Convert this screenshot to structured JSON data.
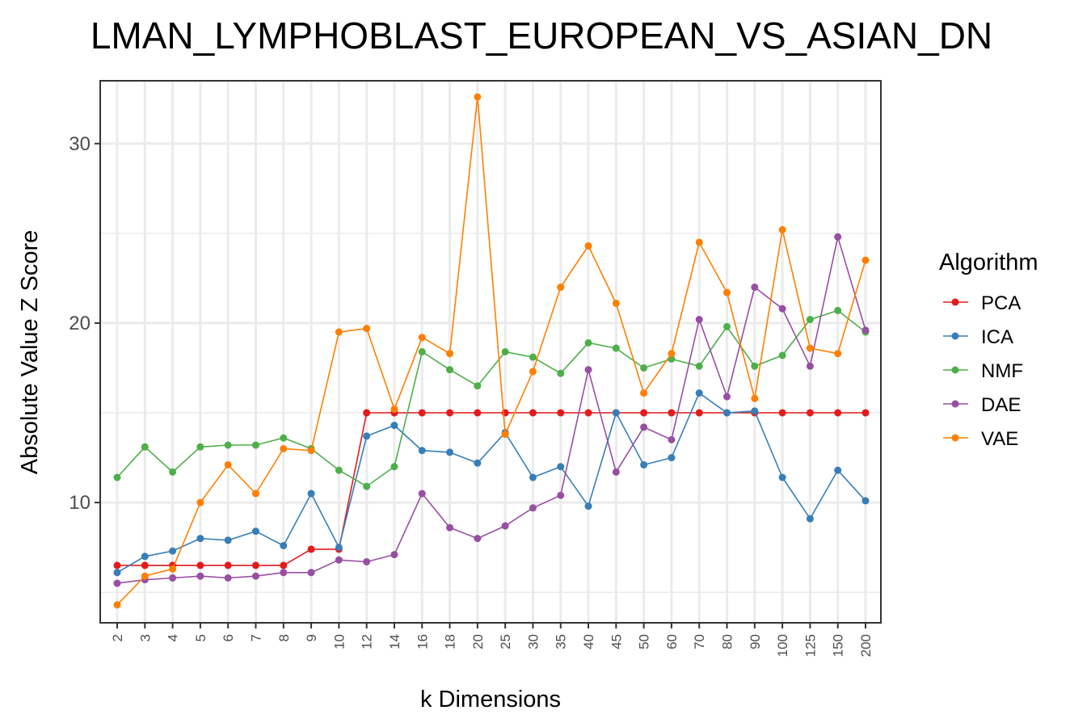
{
  "chart_data": {
    "type": "line",
    "title": "LMAN_LYMPHOBLAST_EUROPEAN_VS_ASIAN_DN",
    "xlabel": "k Dimensions",
    "ylabel": "Absolute Value Z Score",
    "categories": [
      "2",
      "3",
      "4",
      "5",
      "6",
      "7",
      "8",
      "9",
      "10",
      "12",
      "14",
      "16",
      "18",
      "20",
      "25",
      "30",
      "35",
      "40",
      "45",
      "50",
      "60",
      "70",
      "80",
      "90",
      "100",
      "125",
      "150",
      "200"
    ],
    "yticks": [
      10,
      20,
      30
    ],
    "ylim": [
      3.3,
      33.5
    ],
    "grid": true,
    "legend_title": "Algorithm",
    "legend_position": "right",
    "series": [
      {
        "name": "PCA",
        "color": "#e41a1c",
        "values": [
          6.5,
          6.5,
          6.5,
          6.5,
          6.5,
          6.5,
          6.5,
          7.4,
          7.4,
          15.0,
          15.0,
          15.0,
          15.0,
          15.0,
          15.0,
          15.0,
          15.0,
          15.0,
          15.0,
          15.0,
          15.0,
          15.0,
          15.0,
          15.0,
          15.0,
          15.0,
          15.0,
          15.0
        ]
      },
      {
        "name": "ICA",
        "color": "#377eb8",
        "values": [
          6.1,
          7.0,
          7.3,
          8.0,
          7.9,
          8.4,
          7.6,
          10.5,
          7.5,
          13.7,
          14.3,
          12.9,
          12.8,
          12.2,
          13.9,
          11.4,
          12.0,
          9.8,
          15.0,
          12.1,
          12.5,
          16.1,
          15.0,
          15.1,
          11.4,
          9.1,
          11.8,
          10.1
        ]
      },
      {
        "name": "NMF",
        "color": "#4daf4a",
        "values": [
          11.4,
          13.1,
          11.7,
          13.1,
          13.2,
          13.2,
          13.6,
          13.0,
          11.8,
          10.9,
          12.0,
          18.4,
          17.4,
          16.5,
          18.4,
          18.1,
          17.2,
          18.9,
          18.6,
          17.5,
          18.0,
          17.6,
          19.8,
          17.6,
          18.2,
          20.2,
          20.7,
          19.5
        ]
      },
      {
        "name": "DAE",
        "color": "#984ea3",
        "values": [
          5.5,
          5.7,
          5.8,
          5.9,
          5.8,
          5.9,
          6.1,
          6.1,
          6.8,
          6.7,
          7.1,
          10.5,
          8.6,
          8.0,
          8.7,
          9.7,
          10.4,
          17.4,
          11.7,
          14.2,
          13.5,
          20.2,
          15.9,
          22.0,
          20.8,
          17.6,
          24.8,
          19.6
        ]
      },
      {
        "name": "VAE",
        "color": "#ff7f00",
        "values": [
          4.3,
          5.9,
          6.3,
          10.0,
          12.1,
          10.5,
          13.0,
          12.9,
          19.5,
          19.7,
          15.2,
          19.2,
          18.3,
          32.6,
          13.8,
          17.3,
          22.0,
          24.3,
          21.1,
          16.1,
          18.3,
          24.5,
          21.7,
          15.8,
          25.2,
          18.6,
          18.3,
          23.5
        ]
      }
    ]
  }
}
